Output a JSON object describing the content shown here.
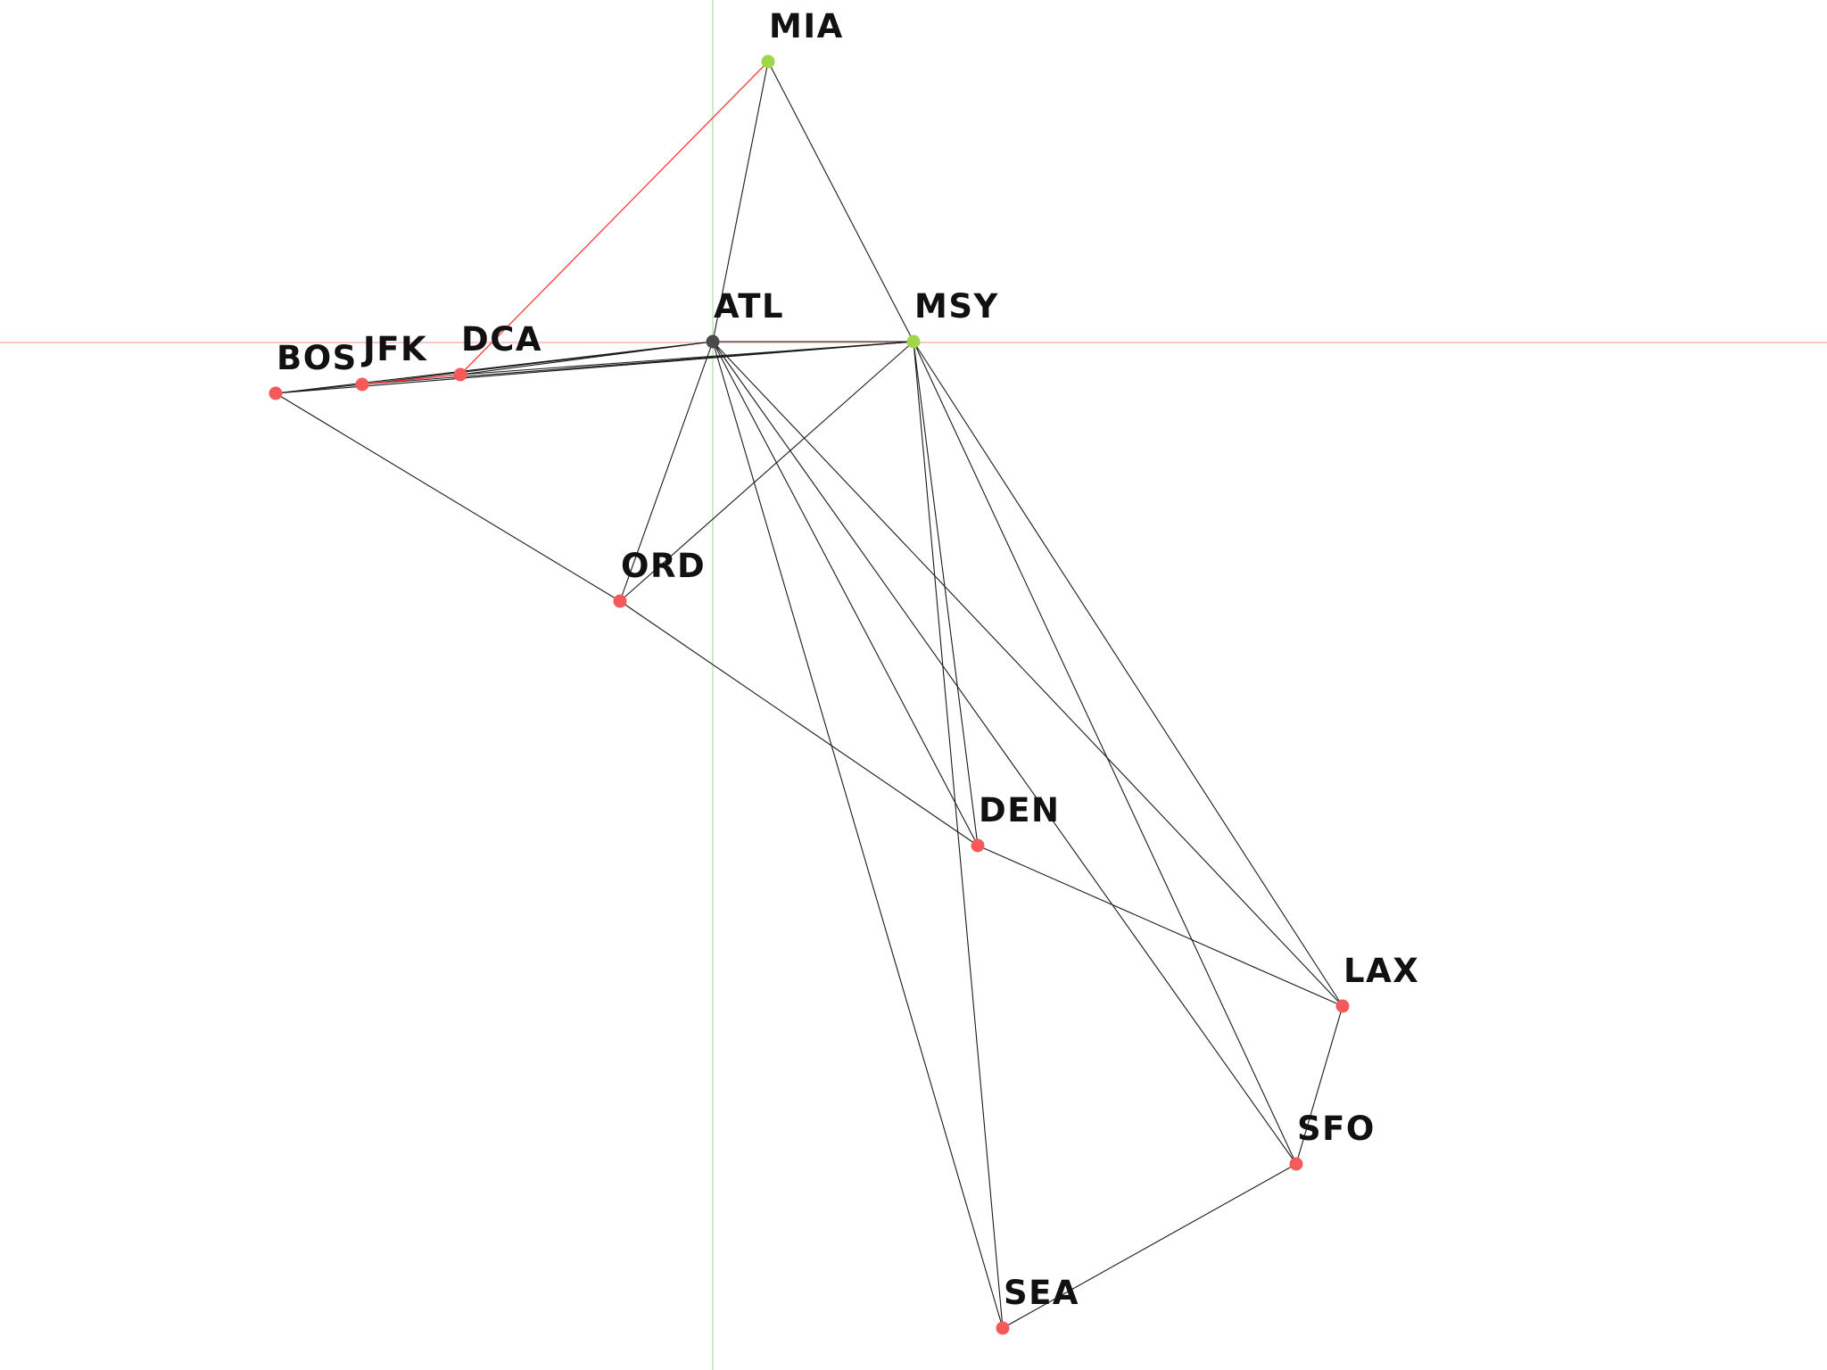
{
  "graph": {
    "nodes": [
      {
        "id": "MIA",
        "label": "MIA",
        "status": "selected"
      },
      {
        "id": "ATL",
        "label": "ATL",
        "status": "origin"
      },
      {
        "id": "MSY",
        "label": "MSY",
        "status": "selected"
      },
      {
        "id": "BOS",
        "label": "BOS",
        "status": "default"
      },
      {
        "id": "JFK",
        "label": "JFK",
        "status": "default"
      },
      {
        "id": "DCA",
        "label": "DCA",
        "status": "default"
      },
      {
        "id": "ORD",
        "label": "ORD",
        "status": "default"
      },
      {
        "id": "DEN",
        "label": "DEN",
        "status": "default"
      },
      {
        "id": "LAX",
        "label": "LAX",
        "status": "default"
      },
      {
        "id": "SFO",
        "label": "SFO",
        "status": "default"
      },
      {
        "id": "SEA",
        "label": "SEA",
        "status": "default"
      }
    ],
    "edges": [
      {
        "from": "MIA",
        "to": "ATL"
      },
      {
        "from": "MIA",
        "to": "MSY"
      },
      {
        "from": "MIA",
        "to": "DCA",
        "highlight": true
      },
      {
        "from": "ATL",
        "to": "MSY"
      },
      {
        "from": "ATL",
        "to": "DCA"
      },
      {
        "from": "ATL",
        "to": "JFK"
      },
      {
        "from": "ATL",
        "to": "BOS"
      },
      {
        "from": "MSY",
        "to": "DCA"
      },
      {
        "from": "MSY",
        "to": "JFK"
      },
      {
        "from": "MSY",
        "to": "BOS"
      },
      {
        "from": "BOS",
        "to": "JFK"
      },
      {
        "from": "JFK",
        "to": "DCA",
        "highlight": true
      },
      {
        "from": "ATL",
        "to": "ORD"
      },
      {
        "from": "MSY",
        "to": "ORD"
      },
      {
        "from": "BOS",
        "to": "ORD"
      },
      {
        "from": "ORD",
        "to": "DEN"
      },
      {
        "from": "ATL",
        "to": "DEN"
      },
      {
        "from": "MSY",
        "to": "DEN"
      },
      {
        "from": "ATL",
        "to": "SEA"
      },
      {
        "from": "MSY",
        "to": "SEA"
      },
      {
        "from": "ATL",
        "to": "SFO"
      },
      {
        "from": "MSY",
        "to": "SFO"
      },
      {
        "from": "ATL",
        "to": "LAX"
      },
      {
        "from": "MSY",
        "to": "LAX"
      },
      {
        "from": "DEN",
        "to": "LAX"
      },
      {
        "from": "LAX",
        "to": "SFO"
      },
      {
        "from": "SFO",
        "to": "SEA"
      }
    ],
    "colors": {
      "default_node": "#f55a5a",
      "selected_node": "#9fd64a",
      "origin_node": "#4a4a4a",
      "edge": "#1a1a1a",
      "highlight_edge": "#ff3b3b",
      "axis_horizontal": "#f6a5a5",
      "axis_vertical": "#a8e6a0"
    }
  }
}
